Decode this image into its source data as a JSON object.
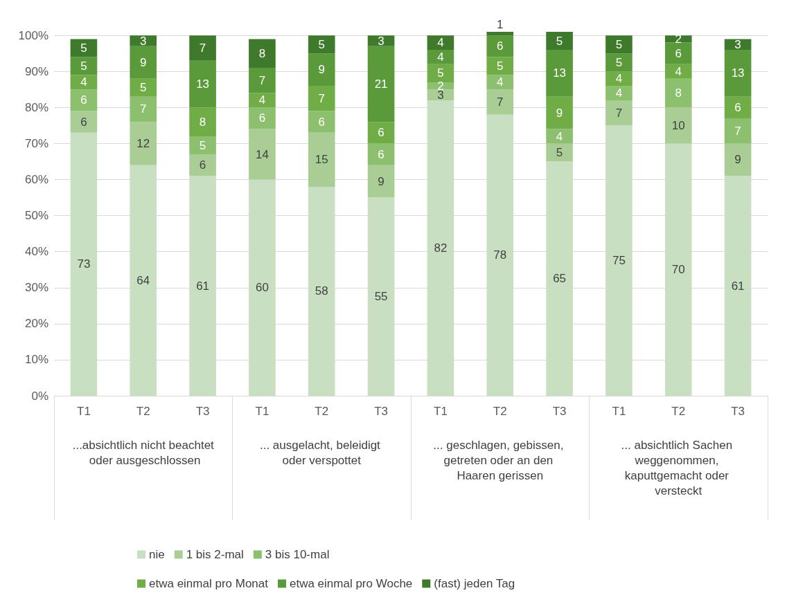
{
  "chart_data": {
    "type": "bar",
    "stacked": true,
    "data_labels": true,
    "grid": "y",
    "legend": "bottom",
    "categories": [
      "T1",
      "T2",
      "T3",
      "T1",
      "T2",
      "T3",
      "T1",
      "T2",
      "T3",
      "T1",
      "T2",
      "T3"
    ],
    "annotations": [
      "...absichtlich nicht beachtet oder ausgeschlossen",
      "... ausgelacht, beleidigt oder verspottet",
      "... geschlagen, gebissen, getreten oder an den Haaren gerissen",
      "... absichtlich Sachen weggenommen, kaputtgemacht oder versteckt"
    ],
    "ylim": [
      0,
      101
    ],
    "yticks": [
      {
        "value": 0,
        "label": "0%"
      },
      {
        "value": 10,
        "label": "10%"
      },
      {
        "value": 20,
        "label": "20%"
      },
      {
        "value": 30,
        "label": "30%"
      },
      {
        "value": 40,
        "label": "40%"
      },
      {
        "value": 50,
        "label": "50%"
      },
      {
        "value": 60,
        "label": "60%"
      },
      {
        "value": 70,
        "label": "70%"
      },
      {
        "value": 80,
        "label": "80%"
      },
      {
        "value": 90,
        "label": "90%"
      },
      {
        "value": 100,
        "label": "100%"
      }
    ],
    "series": [
      {
        "name": "nie",
        "color": "#c9dfc1",
        "values": [
          73,
          64,
          61,
          60,
          58,
          55,
          82,
          78,
          65,
          75,
          70,
          61
        ]
      },
      {
        "name": "1 bis 2-mal",
        "color": "#a9cd95",
        "values": [
          6,
          12,
          6,
          14,
          15,
          9,
          3,
          7,
          5,
          7,
          10,
          9
        ]
      },
      {
        "name": "3 bis 10-mal",
        "color": "#8cc06e",
        "values": [
          6,
          7,
          5,
          6,
          6,
          6,
          2,
          4,
          4,
          4,
          8,
          7
        ]
      },
      {
        "name": "etwa einmal pro Monat",
        "color": "#70ad47",
        "values": [
          4,
          5,
          8,
          4,
          7,
          6,
          5,
          5,
          9,
          4,
          4,
          6
        ]
      },
      {
        "name": "etwa einmal pro Woche",
        "color": "#5a9a3a",
        "values": [
          5,
          9,
          13,
          7,
          9,
          21,
          4,
          6,
          13,
          5,
          6,
          13
        ]
      },
      {
        "name": "(fast) jeden Tag",
        "color": "#3f7a2c",
        "values": [
          5,
          3,
          7,
          8,
          5,
          3,
          4,
          1,
          5,
          5,
          2,
          3
        ]
      }
    ]
  }
}
